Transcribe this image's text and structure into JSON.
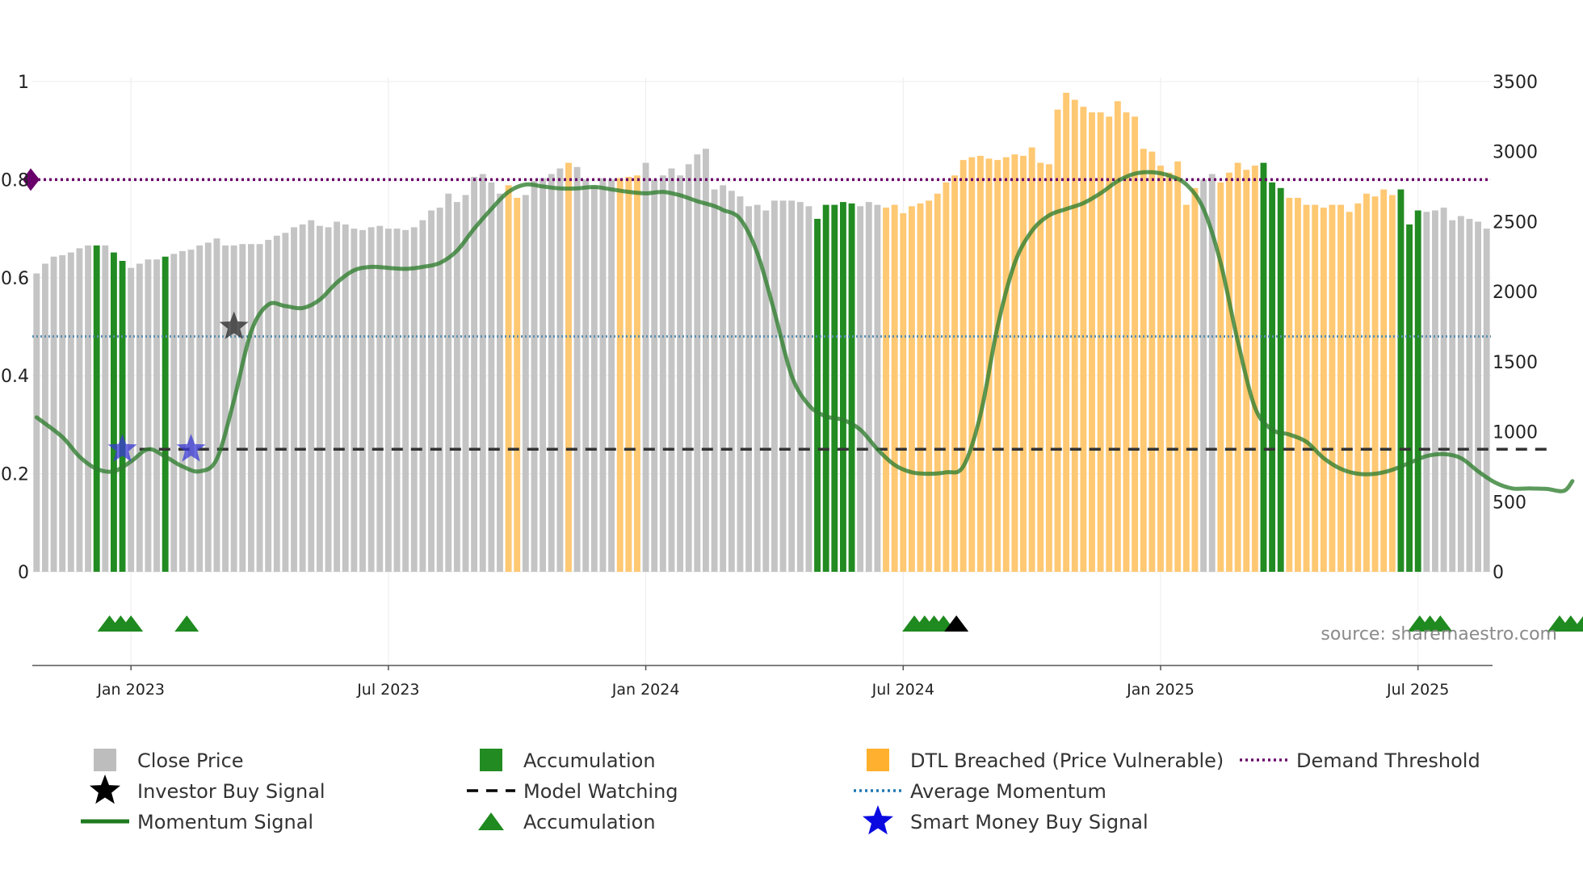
{
  "chart_data": {
    "type": "bar",
    "title": "",
    "source": "source: sharemaestro.com",
    "x_axis": {
      "tick_labels": [
        "Jan 2023",
        "Jul 2023",
        "Jan 2024",
        "Jul 2024",
        "Jan 2025",
        "Jul 2025"
      ],
      "tick_positions_week": [
        11,
        41,
        71,
        101,
        131,
        161
      ]
    },
    "y_left": {
      "range": [
        0,
        1
      ],
      "tick_labels": [
        "0",
        "0.2",
        "0.4",
        "0.6",
        "0.8",
        "1"
      ],
      "ticks": [
        0,
        0.2,
        0.4,
        0.6,
        0.8,
        1
      ]
    },
    "y_right": {
      "range": [
        0,
        3500
      ],
      "tick_labels": [
        "0",
        "500",
        "1000",
        "1500",
        "2000",
        "2500",
        "3000",
        "3500"
      ],
      "ticks": [
        0,
        500,
        1000,
        1500,
        2000,
        2500,
        3000,
        3500
      ]
    },
    "close_price": [
      2130,
      2200,
      2250,
      2260,
      2280,
      2310,
      2330,
      2330,
      2330,
      2280,
      2220,
      2170,
      2200,
      2230,
      2230,
      2250,
      2270,
      2290,
      2300,
      2330,
      2350,
      2380,
      2330,
      2330,
      2340,
      2340,
      2340,
      2370,
      2400,
      2420,
      2460,
      2480,
      2510,
      2470,
      2460,
      2500,
      2480,
      2450,
      2440,
      2460,
      2470,
      2450,
      2450,
      2440,
      2460,
      2510,
      2580,
      2600,
      2700,
      2640,
      2690,
      2820,
      2840,
      2780,
      2700,
      2760,
      2670,
      2690,
      2790,
      2810,
      2840,
      2880,
      2920,
      2890,
      2800,
      2750,
      2810,
      2800,
      2810,
      2820,
      2830,
      2920,
      2800,
      2830,
      2880,
      2830,
      2910,
      2980,
      3020,
      2730,
      2760,
      2720,
      2680,
      2610,
      2620,
      2580,
      2650,
      2650,
      2650,
      2640,
      2610,
      2520,
      2620,
      2620,
      2640,
      2630,
      2610,
      2640,
      2620,
      2600,
      2620,
      2560,
      2610,
      2630,
      2650,
      2700,
      2780,
      2830,
      2940,
      2960,
      2970,
      2950,
      2940,
      2960,
      2980,
      2970,
      3030,
      2920,
      2910,
      3300,
      3420,
      3370,
      3320,
      3280,
      3280,
      3250,
      3360,
      3280,
      3250,
      3020,
      3000,
      2900,
      2850,
      2930,
      2620,
      2740,
      2800,
      2840,
      2780,
      2850,
      2920,
      2870,
      2900,
      2920,
      2780,
      2740,
      2670,
      2670,
      2620,
      2620,
      2600,
      2620,
      2620,
      2570,
      2630,
      2700,
      2680,
      2730,
      2690,
      2730,
      2480,
      2580,
      2570,
      2580,
      2600,
      2510,
      2540,
      2520,
      2500,
      2450
    ],
    "accumulation_bars": [
      7,
      9,
      10,
      15,
      91,
      92,
      93,
      94,
      95,
      143,
      144,
      145,
      159,
      160,
      161
    ],
    "dtl_breached_bars": [
      55,
      56,
      62,
      68,
      69,
      70,
      99,
      100,
      101,
      102,
      103,
      104,
      105,
      106,
      107,
      108,
      109,
      110,
      111,
      112,
      113,
      114,
      115,
      116,
      117,
      118,
      119,
      120,
      121,
      122,
      123,
      124,
      125,
      126,
      127,
      128,
      129,
      130,
      131,
      132,
      133,
      134,
      135,
      138,
      139,
      140,
      141,
      142,
      143,
      144,
      145,
      146,
      147,
      148,
      149,
      150,
      151,
      152,
      153,
      154,
      155,
      156,
      157,
      158,
      159
    ],
    "momentum_signal": [
      [
        0,
        0.315
      ],
      [
        3,
        0.275
      ],
      [
        5,
        0.235
      ],
      [
        7,
        0.21
      ],
      [
        9,
        0.205
      ],
      [
        11,
        0.225
      ],
      [
        13,
        0.25
      ],
      [
        15,
        0.235
      ],
      [
        17,
        0.215
      ],
      [
        19,
        0.205
      ],
      [
        21,
        0.23
      ],
      [
        23,
        0.35
      ],
      [
        25,
        0.49
      ],
      [
        27,
        0.545
      ],
      [
        29,
        0.542
      ],
      [
        31,
        0.538
      ],
      [
        33,
        0.555
      ],
      [
        35,
        0.59
      ],
      [
        37,
        0.615
      ],
      [
        39,
        0.622
      ],
      [
        41,
        0.62
      ],
      [
        43,
        0.618
      ],
      [
        45,
        0.622
      ],
      [
        47,
        0.63
      ],
      [
        49,
        0.655
      ],
      [
        51,
        0.7
      ],
      [
        53,
        0.74
      ],
      [
        55,
        0.775
      ],
      [
        57,
        0.79
      ],
      [
        59,
        0.786
      ],
      [
        61,
        0.782
      ],
      [
        63,
        0.782
      ],
      [
        65,
        0.785
      ],
      [
        67,
        0.78
      ],
      [
        69,
        0.775
      ],
      [
        71,
        0.772
      ],
      [
        73,
        0.775
      ],
      [
        75,
        0.768
      ],
      [
        77,
        0.756
      ],
      [
        79,
        0.746
      ],
      [
        80,
        0.738
      ],
      [
        82,
        0.72
      ],
      [
        84,
        0.65
      ],
      [
        86,
        0.53
      ],
      [
        88,
        0.4
      ],
      [
        90,
        0.34
      ],
      [
        92,
        0.317
      ],
      [
        94,
        0.31
      ],
      [
        96,
        0.29
      ],
      [
        98,
        0.25
      ],
      [
        100,
        0.218
      ],
      [
        102,
        0.203
      ],
      [
        104,
        0.2
      ],
      [
        106,
        0.203
      ],
      [
        108,
        0.215
      ],
      [
        110,
        0.32
      ],
      [
        112,
        0.5
      ],
      [
        114,
        0.63
      ],
      [
        116,
        0.695
      ],
      [
        118,
        0.727
      ],
      [
        120,
        0.74
      ],
      [
        122,
        0.752
      ],
      [
        124,
        0.772
      ],
      [
        126,
        0.797
      ],
      [
        128,
        0.812
      ],
      [
        130,
        0.815
      ],
      [
        132,
        0.808
      ],
      [
        134,
        0.79
      ],
      [
        136,
        0.74
      ],
      [
        138,
        0.63
      ],
      [
        140,
        0.47
      ],
      [
        142,
        0.335
      ],
      [
        144,
        0.29
      ],
      [
        146,
        0.28
      ],
      [
        148,
        0.265
      ],
      [
        150,
        0.232
      ],
      [
        152,
        0.21
      ],
      [
        154,
        0.2
      ],
      [
        156,
        0.2
      ],
      [
        158,
        0.208
      ],
      [
        160,
        0.222
      ],
      [
        162,
        0.236
      ],
      [
        164,
        0.24
      ],
      [
        166,
        0.232
      ],
      [
        168,
        0.205
      ],
      [
        170,
        0.182
      ],
      [
        172,
        0.17
      ],
      [
        174,
        0.17
      ],
      [
        176,
        0.169
      ],
      [
        178,
        0.165
      ],
      [
        179,
        0.185
      ]
    ],
    "average_momentum": 0.48,
    "demand_threshold": 0.8,
    "model_watching": {
      "value": 0.25,
      "start_week": 12,
      "end_week": 176
    },
    "smart_money_buy_signals": [
      {
        "week": 10,
        "value": 0.25
      },
      {
        "week": 18,
        "value": 0.25
      }
    ],
    "investor_buy_signals": [
      {
        "week": 23,
        "value": 0.5
      }
    ],
    "accumulation_markers": [
      {
        "week": 8.5,
        "color": "green"
      },
      {
        "week": 9.8,
        "color": "green"
      },
      {
        "week": 11,
        "color": "green"
      },
      {
        "week": 17.5,
        "color": "green"
      },
      {
        "week": 102.3,
        "color": "green"
      },
      {
        "week": 103.5,
        "color": "green"
      },
      {
        "week": 104.6,
        "color": "green"
      },
      {
        "week": 105.7,
        "color": "green"
      },
      {
        "week": 107.2,
        "color": "black"
      },
      {
        "week": 161.2,
        "color": "green"
      },
      {
        "week": 162.4,
        "color": "green"
      },
      {
        "week": 163.6,
        "color": "green"
      },
      {
        "week": 177.5,
        "color": "green"
      },
      {
        "week": 178.8,
        "color": "green"
      },
      {
        "week": 180.3,
        "color": "green"
      }
    ],
    "legend": [
      {
        "label": "Close Price",
        "kind": "square",
        "color": "#bdbdbd"
      },
      {
        "label": "Investor Buy Signal",
        "kind": "star",
        "color": "#000000"
      },
      {
        "label": "Momentum Signal",
        "kind": "line",
        "color": "#1f7a1f"
      },
      {
        "label": "Accumulation",
        "kind": "square",
        "color": "#228b22"
      },
      {
        "label": "Model Watching",
        "kind": "dash",
        "color": "#000000"
      },
      {
        "label": "Accumulation",
        "kind": "triangle",
        "color": "#1f8a1f"
      },
      {
        "label": "DTL Breached (Price Vulnerable)",
        "kind": "square",
        "color": "#ffb02e"
      },
      {
        "label": "Average Momentum",
        "kind": "dot",
        "color": "#1f77b4"
      },
      {
        "label": "Smart Money Buy Signal",
        "kind": "star",
        "color": "#0a0ae0"
      },
      {
        "label": "Demand Threshold",
        "kind": "dot",
        "color": "#6a0a6a"
      }
    ],
    "colors": {
      "close_price": "#c4c4c4",
      "accumulation": "#228b22",
      "dtl": "#ffc872",
      "momentum": "#2e7d2e",
      "average_momentum": "#5a8fb0",
      "demand_threshold": "#6a006a",
      "model_watching": "#333333",
      "smart_money": "#3b3bd6",
      "investor": "#333333"
    }
  }
}
